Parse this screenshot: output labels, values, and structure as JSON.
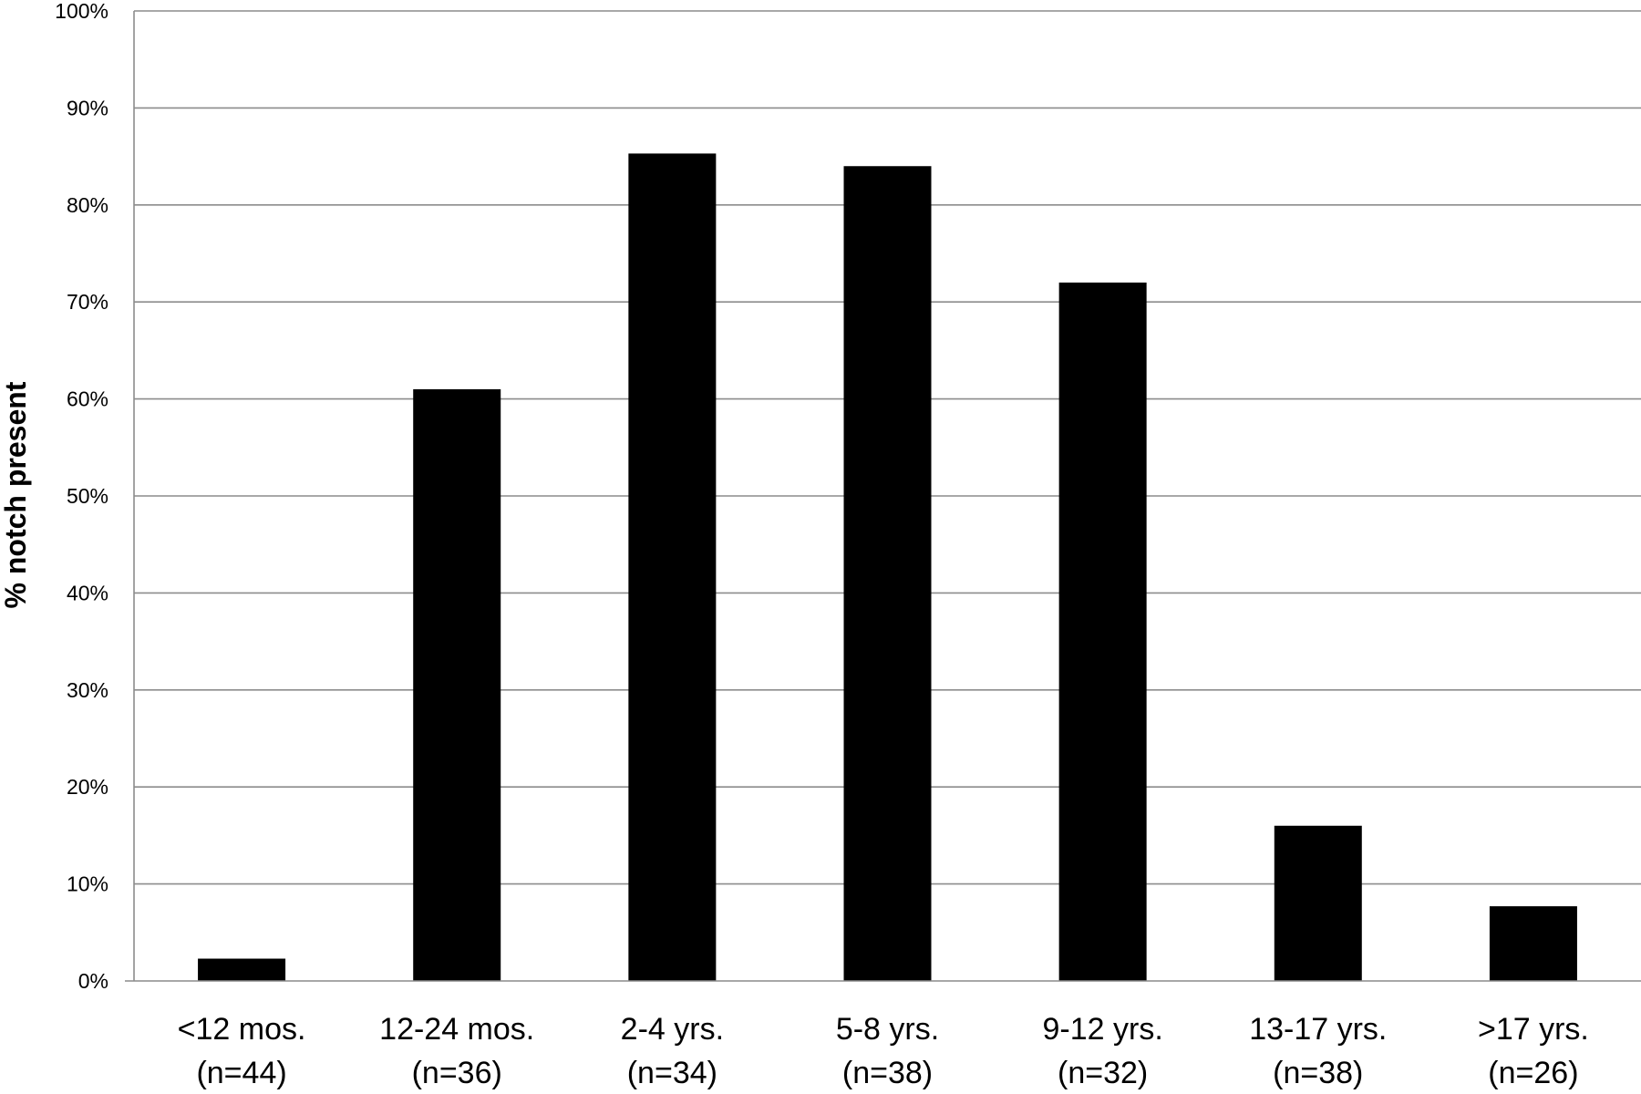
{
  "chart_data": {
    "type": "bar",
    "title": "",
    "xlabel": "",
    "ylabel": "% notch present",
    "ylim": [
      0,
      100
    ],
    "yticks": [
      "0%",
      "10%",
      "20%",
      "30%",
      "40%",
      "50%",
      "60%",
      "70%",
      "80%",
      "90%",
      "100%"
    ],
    "categories": [
      {
        "label": "<12 mos.",
        "n": "(n=44)"
      },
      {
        "label": "12-24 mos.",
        "n": "(n=36)"
      },
      {
        "label": "2-4 yrs.",
        "n": "(n=34)"
      },
      {
        "label": "5-8 yrs.",
        "n": "(n=38)"
      },
      {
        "label": "9-12 yrs.",
        "n": "(n=32)"
      },
      {
        "label": "13-17 yrs.",
        "n": "(n=38)"
      },
      {
        "label": ">17 yrs.",
        "n": "(n=26)"
      }
    ],
    "values": [
      2.3,
      61,
      85.3,
      84,
      72,
      16,
      7.7
    ],
    "grid": true,
    "legend": "none",
    "bar_color": "#000000",
    "grid_color": "#8c8c8c"
  }
}
